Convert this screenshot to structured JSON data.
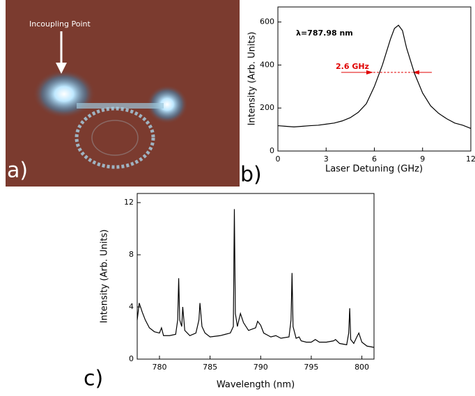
{
  "panel_a": {
    "label": "a)",
    "annotation": "Incoupling Point"
  },
  "chart_data": [
    {
      "type": "line",
      "panel_label": "b)",
      "xlabel": "Laser Detuning (GHz)",
      "ylabel": "Intensity (Arb. Units)",
      "annotations": [
        "λ=787.98 nm",
        "2.6 GHz"
      ],
      "color": "#000000",
      "x": [
        0,
        0.5,
        1,
        1.5,
        2,
        2.5,
        3,
        3.5,
        4,
        4.5,
        5,
        5.5,
        6,
        6.5,
        7,
        7.25,
        7.5,
        7.75,
        8,
        8.5,
        9,
        9.5,
        10,
        10.5,
        11,
        11.5,
        12
      ],
      "values": [
        118,
        115,
        112,
        115,
        118,
        120,
        125,
        130,
        140,
        155,
        180,
        220,
        300,
        400,
        520,
        570,
        585,
        560,
        480,
        360,
        270,
        210,
        175,
        150,
        130,
        120,
        105
      ],
      "xlim": [
        0,
        12
      ],
      "xticks": [
        0,
        3,
        6,
        9,
        12
      ],
      "ylim": [
        0,
        670
      ],
      "yticks": [
        0,
        200,
        400,
        600
      ]
    },
    {
      "type": "line",
      "panel_label": "c)",
      "xlabel": "Wavelength (nm)",
      "ylabel": "Intensity (Arb. Units)",
      "color": "#000000",
      "x": [
        777.8,
        778.0,
        778.3,
        778.6,
        779.0,
        779.5,
        780.0,
        780.2,
        780.4,
        781,
        781.6,
        781.8,
        781.9,
        782.0,
        782.2,
        782.3,
        782.5,
        783,
        783.6,
        783.9,
        784.0,
        784.2,
        784.5,
        785,
        786,
        786.5,
        787,
        787.3,
        787.4,
        787.5,
        787.7,
        788.0,
        788.3,
        788.8,
        789.5,
        789.7,
        790,
        790.3,
        791,
        791.5,
        792,
        792.8,
        793,
        793.1,
        793.2,
        793.5,
        793.8,
        794,
        794.5,
        795,
        795.4,
        795.8,
        796.5,
        797.2,
        797.4,
        797.8,
        798.5,
        798.7,
        798.8,
        798.9,
        799.2,
        799.5,
        799.7,
        800,
        800.5,
        801.2
      ],
      "values": [
        3.0,
        4.3,
        3.6,
        3.0,
        2.4,
        2.1,
        2.0,
        2.4,
        1.8,
        1.8,
        1.9,
        3.0,
        6.2,
        3.0,
        2.5,
        4.0,
        2.2,
        1.8,
        2.0,
        3.0,
        4.3,
        2.5,
        2.0,
        1.7,
        1.8,
        1.9,
        2.0,
        2.5,
        11.5,
        3.5,
        2.5,
        3.5,
        2.8,
        2.2,
        2.4,
        2.9,
        2.6,
        2.0,
        1.7,
        1.8,
        1.6,
        1.7,
        3.0,
        6.6,
        2.5,
        1.6,
        1.7,
        1.4,
        1.3,
        1.3,
        1.5,
        1.3,
        1.3,
        1.4,
        1.5,
        1.2,
        1.1,
        2.0,
        3.9,
        1.5,
        1.2,
        1.7,
        2.0,
        1.3,
        1.0,
        0.9
      ],
      "xlim": [
        777.8,
        801.2
      ],
      "xticks": [
        780,
        785,
        790,
        795,
        800
      ],
      "ylim": [
        0,
        12.7
      ],
      "yticks": [
        0,
        4,
        8,
        12
      ]
    }
  ]
}
